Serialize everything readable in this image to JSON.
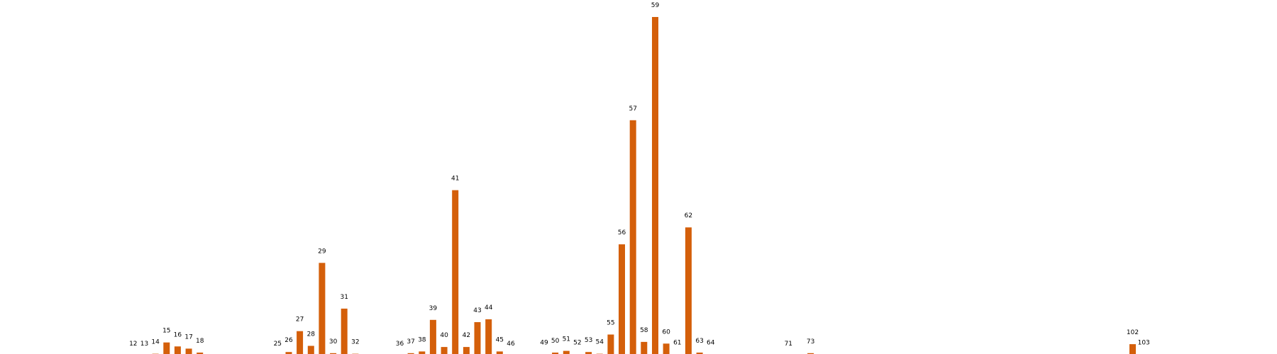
{
  "chart_data": {
    "type": "bar",
    "title": "",
    "xlabel": "",
    "ylabel": "",
    "bar_color": "#d45f0a",
    "label_color": "#000000",
    "background": "#ffffff",
    "grid": false,
    "axes_visible": false,
    "x_range": [
      0,
      115
    ],
    "ylim": [
      0,
      60
    ],
    "categories": [
      "12",
      "13",
      "14",
      "15",
      "16",
      "17",
      "18",
      "25",
      "26",
      "27",
      "28",
      "29",
      "30",
      "31",
      "32",
      "36",
      "37",
      "38",
      "39",
      "40",
      "41",
      "42",
      "43",
      "44",
      "45",
      "46",
      "49",
      "50",
      "51",
      "52",
      "53",
      "54",
      "55",
      "56",
      "57",
      "58",
      "59",
      "60",
      "61",
      "62",
      "63",
      "64",
      "71",
      "73",
      "102",
      "103"
    ],
    "values": [
      0,
      0,
      0.3,
      2.3,
      1.6,
      1.2,
      0.5,
      0,
      0.6,
      4.3,
      1.7,
      16.4,
      0.4,
      8.3,
      0.3,
      0,
      0.4,
      0.7,
      6.3,
      1.5,
      29.3,
      1.5,
      5.9,
      6.4,
      0.7,
      0,
      0.2,
      0.5,
      0.8,
      0.2,
      0.6,
      0.3,
      3.7,
      19.7,
      41.7,
      2.4,
      60.0,
      2.1,
      0.2,
      22.7,
      0.5,
      0.2,
      0,
      0.4,
      2.0,
      0.2
    ]
  }
}
